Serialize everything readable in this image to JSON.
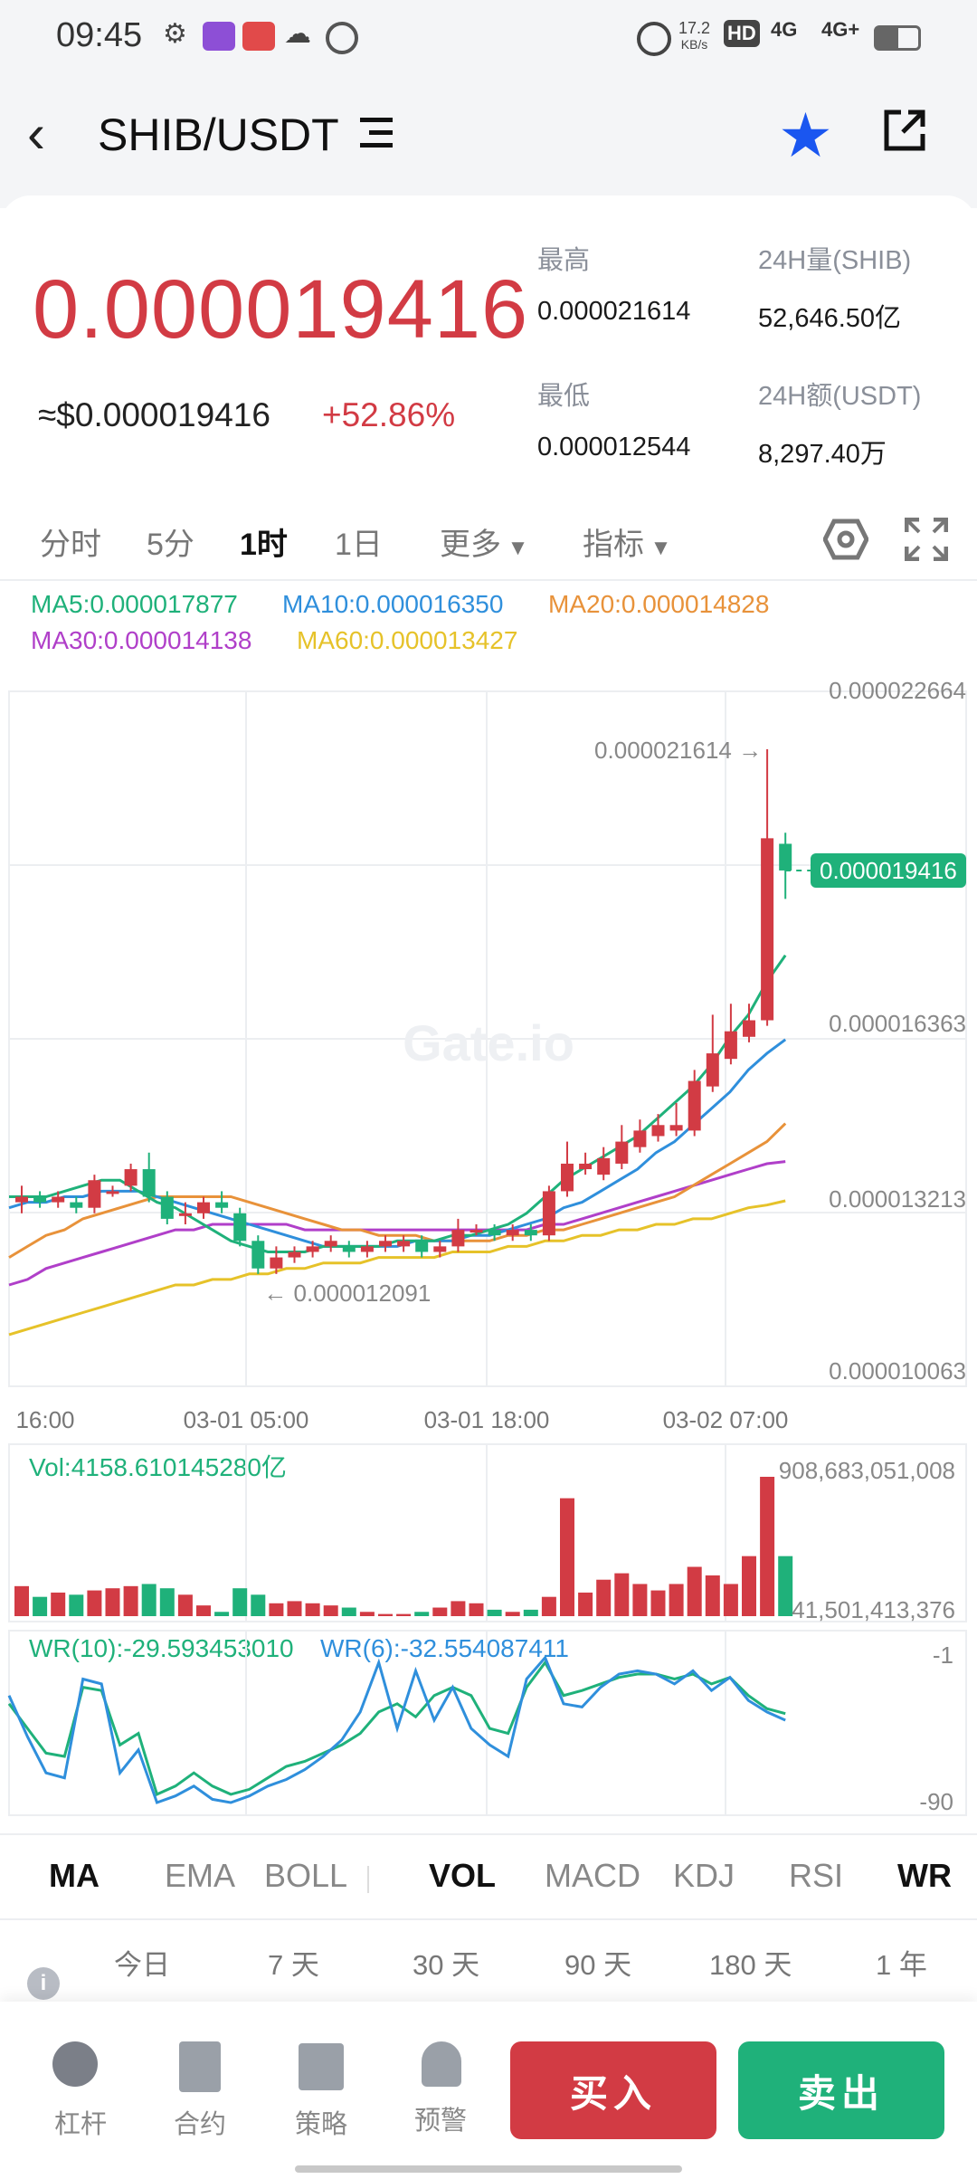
{
  "status_bar": {
    "time": "09:45",
    "net_speed": "17.2",
    "net_speed_unit": "KB/s",
    "hd_label": "HD",
    "signal_1": "4G",
    "signal_2": "4G+",
    "icons": [
      "gear-icon",
      "app-icon",
      "app-icon",
      "wechat-icon",
      "sync-icon",
      "alarm-icon",
      "battery-icon"
    ]
  },
  "header": {
    "pair": "SHIB/USDT",
    "favorite_icon": "star-icon",
    "share_icon": "share-icon"
  },
  "ticker": {
    "price": "0.000019416",
    "usd_price": "≈$0.000019416",
    "change": "+52.86%",
    "high_label": "最高",
    "high": "0.000021614",
    "low_label": "最低",
    "low": "0.000012544",
    "vol_label": "24H量(SHIB)",
    "vol": "52,646.50亿",
    "amt_label": "24H额(USDT)",
    "amt": "8,297.40万",
    "colors": {
      "up": "#d23b44",
      "down": "#1fb17a"
    }
  },
  "timeframes": {
    "items": [
      "分时",
      "5分",
      "1时",
      "1日",
      "更多",
      "指标"
    ],
    "active": "1时"
  },
  "ma_legend": {
    "ma5": "MA5:0.000017877",
    "ma10": "MA10:0.000016350",
    "ma20": "MA20:0.000014828",
    "ma30": "MA30:0.000014138",
    "ma60": "MA60:0.000013427",
    "colors": {
      "ma5": "#1fb17a",
      "ma10": "#2f8fdc",
      "ma20": "#e8923a",
      "ma30": "#b03fc9",
      "ma60": "#e6c229"
    }
  },
  "chart": {
    "y_ticks": [
      "0.000022664",
      "0.000016363",
      "0.000013213",
      "0.000010063"
    ],
    "x_ticks": [
      "16:00",
      "03-01 05:00",
      "03-01 18:00",
      "03-02 07:00"
    ],
    "high_marker": "0.000021614 →",
    "low_marker": "← 0.000012091",
    "last_price_tag": "0.000019416",
    "watermark": "Gate.io"
  },
  "chart_data": {
    "type": "candlestick",
    "candles": [
      {
        "o": 13.4,
        "c": 13.5,
        "h": 13.7,
        "l": 13.2
      },
      {
        "o": 13.5,
        "c": 13.4,
        "h": 13.6,
        "l": 13.3
      },
      {
        "o": 13.4,
        "c": 13.5,
        "h": 13.6,
        "l": 13.3
      },
      {
        "o": 13.4,
        "c": 13.3,
        "h": 13.5,
        "l": 13.2
      },
      {
        "o": 13.3,
        "c": 13.8,
        "h": 13.9,
        "l": 13.2
      },
      {
        "o": 13.6,
        "c": 13.6,
        "h": 13.7,
        "l": 13.5
      },
      {
        "o": 13.7,
        "c": 14.0,
        "h": 14.1,
        "l": 13.6
      },
      {
        "o": 14.0,
        "c": 13.5,
        "h": 14.3,
        "l": 13.4
      },
      {
        "o": 13.5,
        "c": 13.1,
        "h": 13.6,
        "l": 13.0
      },
      {
        "o": 13.2,
        "c": 13.2,
        "h": 13.4,
        "l": 13.0
      },
      {
        "o": 13.2,
        "c": 13.4,
        "h": 13.5,
        "l": 13.1
      },
      {
        "o": 13.4,
        "c": 13.3,
        "h": 13.6,
        "l": 13.2
      },
      {
        "o": 13.2,
        "c": 12.7,
        "h": 13.3,
        "l": 12.6
      },
      {
        "o": 12.7,
        "c": 12.2,
        "h": 12.8,
        "l": 12.1
      },
      {
        "o": 12.2,
        "c": 12.4,
        "h": 12.6,
        "l": 12.1
      },
      {
        "o": 12.4,
        "c": 12.5,
        "h": 12.6,
        "l": 12.3
      },
      {
        "o": 12.5,
        "c": 12.6,
        "h": 12.7,
        "l": 12.4
      },
      {
        "o": 12.6,
        "c": 12.7,
        "h": 12.8,
        "l": 12.5
      },
      {
        "o": 12.6,
        "c": 12.5,
        "h": 12.7,
        "l": 12.4
      },
      {
        "o": 12.5,
        "c": 12.6,
        "h": 12.7,
        "l": 12.4
      },
      {
        "o": 12.6,
        "c": 12.7,
        "h": 12.8,
        "l": 12.5
      },
      {
        "o": 12.6,
        "c": 12.7,
        "h": 12.8,
        "l": 12.5
      },
      {
        "o": 12.7,
        "c": 12.5,
        "h": 12.8,
        "l": 12.4
      },
      {
        "o": 12.5,
        "c": 12.6,
        "h": 12.7,
        "l": 12.4
      },
      {
        "o": 12.6,
        "c": 12.9,
        "h": 13.1,
        "l": 12.5
      },
      {
        "o": 12.9,
        "c": 12.9,
        "h": 13.0,
        "l": 12.8
      },
      {
        "o": 12.9,
        "c": 12.8,
        "h": 13.0,
        "l": 12.7
      },
      {
        "o": 12.8,
        "c": 12.9,
        "h": 13.0,
        "l": 12.7
      },
      {
        "o": 12.9,
        "c": 12.8,
        "h": 13.0,
        "l": 12.7
      },
      {
        "o": 12.8,
        "c": 13.6,
        "h": 13.7,
        "l": 12.7
      },
      {
        "o": 13.6,
        "c": 14.1,
        "h": 14.5,
        "l": 13.5
      },
      {
        "o": 14.0,
        "c": 14.1,
        "h": 14.3,
        "l": 13.9
      },
      {
        "o": 13.9,
        "c": 14.2,
        "h": 14.4,
        "l": 13.8
      },
      {
        "o": 14.1,
        "c": 14.5,
        "h": 14.8,
        "l": 14.0
      },
      {
        "o": 14.4,
        "c": 14.7,
        "h": 14.9,
        "l": 14.3
      },
      {
        "o": 14.6,
        "c": 14.8,
        "h": 15.0,
        "l": 14.5
      },
      {
        "o": 14.7,
        "c": 14.8,
        "h": 15.2,
        "l": 14.6
      },
      {
        "o": 14.7,
        "c": 15.6,
        "h": 15.8,
        "l": 14.6
      },
      {
        "o": 15.5,
        "c": 16.1,
        "h": 16.8,
        "l": 15.4
      },
      {
        "o": 16.0,
        "c": 16.5,
        "h": 17.0,
        "l": 15.9
      },
      {
        "o": 16.4,
        "c": 16.7,
        "h": 17.0,
        "l": 16.3
      },
      {
        "o": 16.7,
        "c": 20.0,
        "h": 21.614,
        "l": 16.6
      },
      {
        "o": 19.9,
        "c": 19.416,
        "h": 20.1,
        "l": 18.9
      }
    ],
    "ma_lines": {
      "ma5": [
        13.5,
        13.5,
        13.5,
        13.6,
        13.7,
        13.8,
        13.8,
        13.6,
        13.4,
        13.3,
        13.1,
        12.9,
        12.7,
        12.6,
        12.5,
        12.5,
        12.5,
        12.6,
        12.6,
        12.6,
        12.6,
        12.7,
        12.7,
        12.7,
        12.8,
        12.8,
        12.9,
        13.0,
        13.2,
        13.5,
        13.8,
        14.0,
        14.2,
        14.4,
        14.6,
        14.9,
        15.2,
        15.5,
        15.9,
        16.4,
        16.8,
        17.4,
        17.877
      ],
      "ma10": [
        13.3,
        13.4,
        13.4,
        13.5,
        13.5,
        13.6,
        13.6,
        13.6,
        13.5,
        13.4,
        13.3,
        13.2,
        13.1,
        13.0,
        12.9,
        12.8,
        12.7,
        12.6,
        12.6,
        12.6,
        12.6,
        12.6,
        12.7,
        12.7,
        12.7,
        12.8,
        12.8,
        12.9,
        13.0,
        13.1,
        13.3,
        13.4,
        13.6,
        13.8,
        14.0,
        14.3,
        14.5,
        14.8,
        15.1,
        15.4,
        15.8,
        16.1,
        16.35
      ],
      "ma20": [
        12.4,
        12.6,
        12.8,
        12.9,
        13.1,
        13.2,
        13.3,
        13.4,
        13.5,
        13.5,
        13.5,
        13.5,
        13.5,
        13.4,
        13.3,
        13.2,
        13.1,
        13.0,
        12.9,
        12.9,
        12.8,
        12.8,
        12.8,
        12.7,
        12.7,
        12.7,
        12.7,
        12.8,
        12.8,
        12.9,
        12.9,
        13.0,
        13.1,
        13.2,
        13.3,
        13.4,
        13.5,
        13.7,
        13.9,
        14.1,
        14.3,
        14.5,
        14.828
      ],
      "ma30": [
        11.9,
        12.0,
        12.2,
        12.3,
        12.4,
        12.5,
        12.6,
        12.7,
        12.8,
        12.9,
        12.9,
        13.0,
        13.0,
        13.0,
        13.0,
        13.0,
        12.9,
        12.9,
        12.9,
        12.9,
        12.9,
        12.9,
        12.9,
        12.9,
        12.9,
        12.9,
        12.9,
        12.9,
        12.9,
        13.0,
        13.0,
        13.1,
        13.2,
        13.3,
        13.4,
        13.5,
        13.6,
        13.7,
        13.8,
        13.9,
        14.0,
        14.1,
        14.138
      ],
      "ma60": [
        11.0,
        11.1,
        11.2,
        11.3,
        11.4,
        11.5,
        11.6,
        11.7,
        11.8,
        11.9,
        11.9,
        12.0,
        12.0,
        12.1,
        12.1,
        12.2,
        12.2,
        12.3,
        12.3,
        12.3,
        12.4,
        12.4,
        12.4,
        12.4,
        12.5,
        12.5,
        12.5,
        12.6,
        12.6,
        12.7,
        12.7,
        12.8,
        12.8,
        12.9,
        12.9,
        13.0,
        13.0,
        13.1,
        13.1,
        13.2,
        13.3,
        13.35,
        13.427
      ]
    },
    "ylim": [
      10.063,
      22.664
    ],
    "y_unit": "1e-6 USDT",
    "volume": [
      28,
      18,
      22,
      20,
      24,
      26,
      28,
      30,
      26,
      20,
      10,
      4,
      26,
      20,
      12,
      14,
      12,
      10,
      8,
      4,
      2,
      2,
      4,
      8,
      14,
      12,
      6,
      4,
      6,
      18,
      110,
      22,
      34,
      40,
      30,
      24,
      30,
      46,
      38,
      30,
      56,
      130,
      56
    ],
    "volume_label": "Vol:4158.610145280亿",
    "volume_ticks": [
      "908,683,051,008",
      "41,501,413,376"
    ],
    "wr10": [
      -30,
      -45,
      -60,
      -62,
      -20,
      -22,
      -55,
      -48,
      -85,
      -80,
      -72,
      -80,
      -85,
      -82,
      -75,
      -68,
      -65,
      -60,
      -55,
      -48,
      -35,
      -30,
      -38,
      -25,
      -20,
      -25,
      -45,
      -48,
      -20,
      -5,
      -25,
      -22,
      -18,
      -14,
      -12,
      -12,
      -15,
      -12,
      -18,
      -14,
      -25,
      -33,
      -36
    ],
    "wr6": [
      -25,
      -50,
      -72,
      -75,
      -15,
      -18,
      -72,
      -58,
      -90,
      -86,
      -80,
      -88,
      -90,
      -86,
      -80,
      -76,
      -70,
      -62,
      -52,
      -35,
      -5,
      -45,
      -10,
      -40,
      -20,
      -45,
      -55,
      -62,
      -15,
      -2,
      -30,
      -32,
      -20,
      -12,
      -10,
      -12,
      -18,
      -10,
      -22,
      -14,
      -28,
      -35,
      -40
    ],
    "wr_label_10": "WR(10):-29.593453010",
    "wr_label_6": "WR(6):-32.554087411",
    "wr_ticks": [
      "-1",
      "-90"
    ]
  },
  "indicators": {
    "items": [
      "MA",
      "EMA",
      "BOLL",
      "VOL",
      "MACD",
      "KDJ",
      "RSI",
      "WR"
    ],
    "selected": [
      "MA",
      "VOL",
      "WR"
    ]
  },
  "periods": {
    "items": [
      "今日",
      "7 天",
      "30 天",
      "90 天",
      "180 天",
      "1 年"
    ]
  },
  "bottom_nav": {
    "items": [
      {
        "label": "杠杆",
        "icon": "lever-icon"
      },
      {
        "label": "合约",
        "icon": "contract-icon"
      },
      {
        "label": "策略",
        "icon": "strategy-icon"
      },
      {
        "label": "预警",
        "icon": "alert-icon"
      }
    ],
    "buy": "买入",
    "sell": "卖出"
  }
}
